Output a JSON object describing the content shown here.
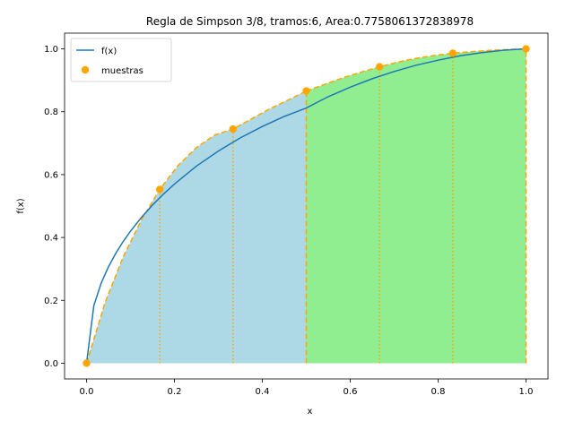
{
  "chart_data": {
    "type": "line",
    "title": "Regla de Simpson 3/8, tramos:6, Area:0.7758061372838978",
    "xlabel": "x",
    "ylabel": "f(x)",
    "xlim": [
      -0.05,
      1.05
    ],
    "ylim": [
      -0.05,
      1.05
    ],
    "x_ticks": [
      0.0,
      0.2,
      0.4,
      0.6,
      0.8,
      1.0
    ],
    "x_tick_labels": [
      "0.0",
      "0.2",
      "0.4",
      "0.6",
      "0.8",
      "1.0"
    ],
    "y_ticks": [
      0.0,
      0.2,
      0.4,
      0.6,
      0.8,
      1.0
    ],
    "y_tick_labels": [
      "0.0",
      "0.2",
      "0.4",
      "0.6",
      "0.8",
      "1.0"
    ],
    "grid": false,
    "legend_position": "upper left",
    "series": [
      {
        "name": "f(x)",
        "kind": "line",
        "color": "#1f77b4",
        "x": [
          0.0,
          0.0167,
          0.0333,
          0.05,
          0.0667,
          0.0833,
          0.1,
          0.125,
          0.15,
          0.175,
          0.2,
          0.25,
          0.3,
          0.35,
          0.4,
          0.45,
          0.5,
          0.55,
          0.6,
          0.65,
          0.7,
          0.75,
          0.8,
          0.85,
          0.9,
          0.95,
          1.0
        ],
        "y": [
          0.0,
          0.184,
          0.255,
          0.307,
          0.35,
          0.387,
          0.42,
          0.464,
          0.503,
          0.538,
          0.57,
          0.627,
          0.675,
          0.717,
          0.753,
          0.785,
          0.812,
          0.848,
          0.878,
          0.905,
          0.928,
          0.948,
          0.964,
          0.978,
          0.988,
          0.996,
          1.0
        ]
      },
      {
        "name": "muestras",
        "kind": "points",
        "color": "#ffa500",
        "x": [
          0.0,
          0.1667,
          0.3333,
          0.5,
          0.6667,
          0.8333,
          1.0
        ],
        "y": [
          0.0,
          0.553,
          0.745,
          0.866,
          0.943,
          0.986,
          1.0
        ]
      }
    ],
    "segments": [
      {
        "fill_color": "#add8e6",
        "x": [
          0.0,
          0.0417,
          0.0833,
          0.125,
          0.1667,
          0.2083,
          0.25,
          0.2917,
          0.3333,
          0.375,
          0.4167,
          0.4583,
          0.5
        ],
        "y": [
          0.0,
          0.191,
          0.338,
          0.456,
          0.553,
          0.629,
          0.686,
          0.726,
          0.745,
          0.777,
          0.809,
          0.837,
          0.866
        ]
      },
      {
        "fill_color": "#90ee90",
        "x": [
          0.5,
          0.5417,
          0.5833,
          0.625,
          0.6667,
          0.7083,
          0.75,
          0.7917,
          0.8333,
          0.875,
          0.9167,
          0.9583,
          1.0
        ],
        "y": [
          0.866,
          0.887,
          0.908,
          0.926,
          0.943,
          0.958,
          0.97,
          0.979,
          0.986,
          0.991,
          0.995,
          0.998,
          1.0
        ]
      }
    ],
    "dashed_color": "#ffa500"
  }
}
